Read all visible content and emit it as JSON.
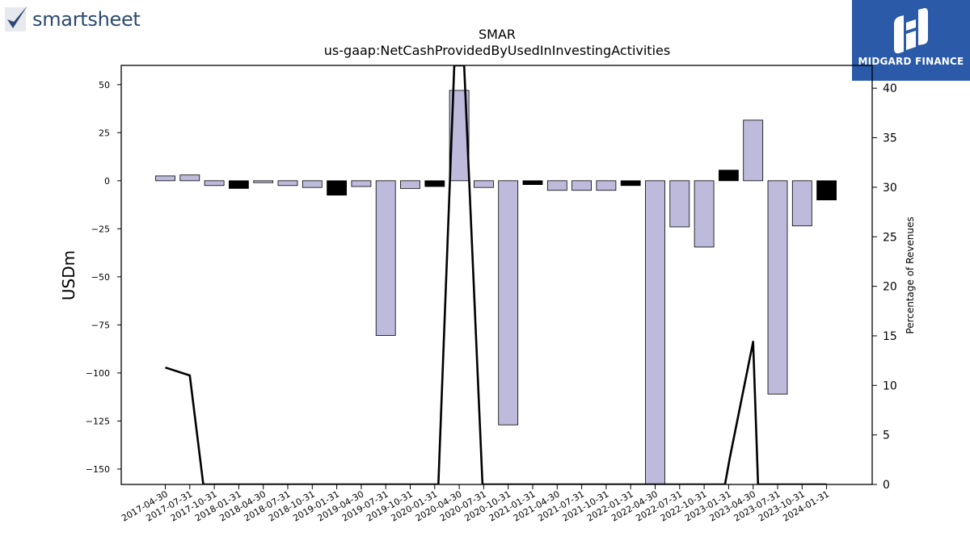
{
  "brand": {
    "left_logo_text": "smartsheet",
    "right_logo_text": "MIDGARD FINANCE",
    "right_logo_color": "#2a5aa8"
  },
  "chart_data": {
    "type": "bar",
    "title": "SMAR",
    "subtitle": "us-gaap:NetCashProvidedByUsedInInvestingActivities",
    "ylabel": "USDm",
    "y2label": "Percentage of Revenues",
    "ylim": [
      -158,
      60
    ],
    "y2lim": [
      0,
      42.3
    ],
    "yticks": [
      50,
      25,
      0,
      -25,
      -50,
      -75,
      -100,
      -125,
      -150
    ],
    "y2ticks": [
      0,
      5,
      10,
      15,
      20,
      25,
      30,
      35,
      40
    ],
    "ytick_labels": [
      "50",
      "25",
      "0",
      "−25",
      "−50",
      "−75",
      "−100",
      "−125",
      "−150"
    ],
    "y2tick_labels": [
      "0",
      "5",
      "10",
      "15",
      "20",
      "25",
      "30",
      "35",
      "40"
    ],
    "categories": [
      "2017-04-30",
      "2017-07-31",
      "2017-10-31",
      "2018-01-31",
      "2018-04-30",
      "2018-07-31",
      "2018-10-31",
      "2019-01-31",
      "2019-04-30",
      "2019-07-31",
      "2019-10-31",
      "2020-01-31",
      "2020-04-30",
      "2020-07-31",
      "2020-10-31",
      "2021-01-31",
      "2021-04-30",
      "2021-07-31",
      "2021-10-31",
      "2022-01-31",
      "2022-04-30",
      "2022-07-31",
      "2022-10-31",
      "2023-01-31",
      "2023-04-30",
      "2023-07-31",
      "2023-10-31",
      "2024-01-31"
    ],
    "values": [
      2.5,
      3.0,
      -2.5,
      -4.0,
      -1.0,
      -2.5,
      -3.5,
      -7.5,
      -3.0,
      -80.5,
      -4.0,
      -3.0,
      47.0,
      -3.5,
      -127.0,
      -2.0,
      -5.0,
      -5.0,
      -5.0,
      -2.5,
      -158.0,
      -24.0,
      -34.5,
      5.5,
      31.5,
      -111.0,
      -23.5,
      -10.0
    ],
    "bar_fill": [
      "#bdbadb",
      "#bdbadb",
      "#bdbadb",
      "#000000",
      "#bdbadb",
      "#bdbadb",
      "#bdbadb",
      "#000000",
      "#bdbadb",
      "#bdbadb",
      "#bdbadb",
      "#000000",
      "#bdbadb",
      "#bdbadb",
      "#bdbadb",
      "#000000",
      "#bdbadb",
      "#bdbadb",
      "#bdbadb",
      "#000000",
      "#bdbadb",
      "#bdbadb",
      "#bdbadb",
      "#000000",
      "#bdbadb",
      "#bdbadb",
      "#bdbadb",
      "#000000"
    ],
    "line": {
      "color": "#000000",
      "points": [
        {
          "x": 0,
          "y": 11.8
        },
        {
          "x": 1,
          "y": 11.0
        },
        {
          "x": 1.55,
          "y": 0
        },
        {
          "x": 11.15,
          "y": 0
        },
        {
          "x": 11.8,
          "y": 42.3
        },
        {
          "x": 12.2,
          "y": 42.3
        },
        {
          "x": 12.95,
          "y": 0
        },
        {
          "x": 22.85,
          "y": 0
        },
        {
          "x": 23.05,
          "y": 2.7
        },
        {
          "x": 24.0,
          "y": 14.4
        },
        {
          "x": 24.2,
          "y": 0
        },
        {
          "x": 27,
          "y": 0
        }
      ]
    },
    "grid": false,
    "legend": "none"
  }
}
